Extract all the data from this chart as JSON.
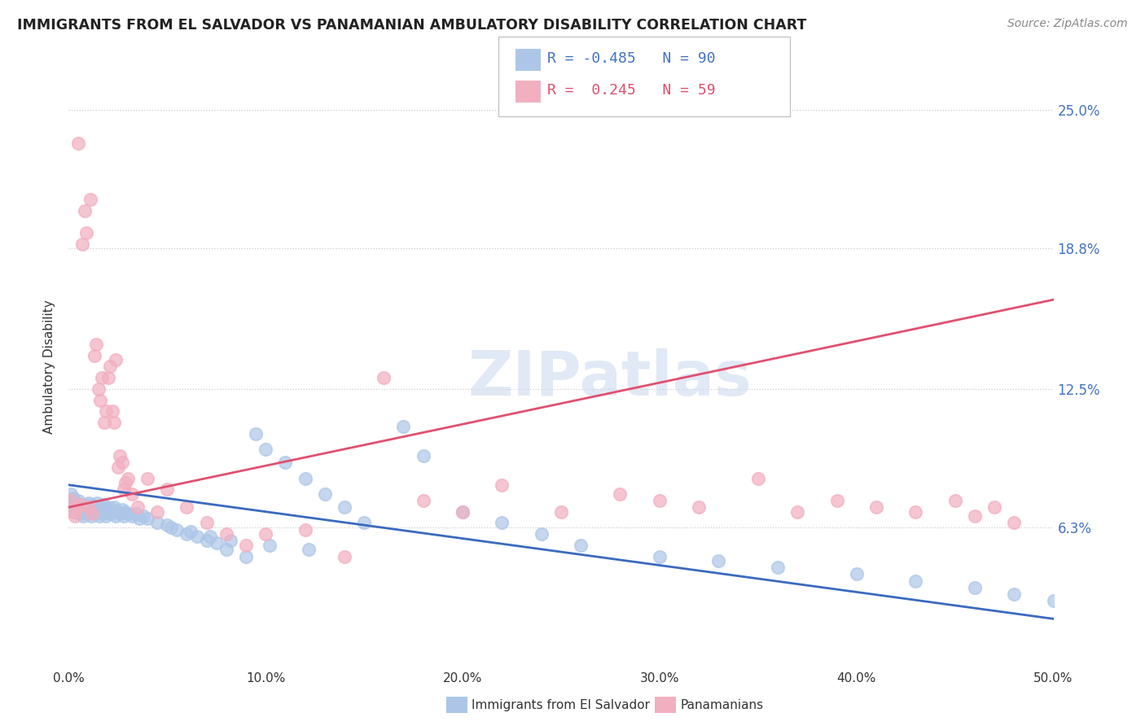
{
  "title": "IMMIGRANTS FROM EL SALVADOR VS PANAMANIAN AMBULATORY DISABILITY CORRELATION CHART",
  "source": "Source: ZipAtlas.com",
  "ylabel": "Ambulatory Disability",
  "yticks": [
    "6.3%",
    "12.5%",
    "18.8%",
    "25.0%"
  ],
  "ytick_vals": [
    6.3,
    12.5,
    18.8,
    25.0
  ],
  "legend1_label": "Immigrants from El Salvador",
  "legend2_label": "Panamanians",
  "R1": -0.485,
  "N1": 90,
  "R2": 0.245,
  "N2": 59,
  "color_blue": "#adc6e8",
  "color_pink": "#f2afc0",
  "line_blue": "#3a6abf",
  "line_pink": "#e05070",
  "watermark": "ZIPatlas",
  "xlim": [
    0.0,
    50.0
  ],
  "ylim": [
    0.0,
    27.0
  ],
  "blue_scatter_x": [
    0.1,
    0.15,
    0.2,
    0.25,
    0.3,
    0.35,
    0.4,
    0.45,
    0.5,
    0.55,
    0.6,
    0.65,
    0.7,
    0.75,
    0.8,
    0.85,
    0.9,
    0.95,
    1.0,
    1.05,
    1.1,
    1.15,
    1.2,
    1.25,
    1.3,
    1.35,
    1.4,
    1.45,
    1.5,
    1.55,
    1.6,
    1.65,
    1.7,
    1.75,
    1.8,
    1.85,
    1.9,
    1.95,
    2.0,
    2.1,
    2.2,
    2.3,
    2.4,
    2.5,
    2.6,
    2.7,
    2.8,
    2.9,
    3.0,
    3.2,
    3.4,
    3.6,
    3.8,
    4.0,
    4.5,
    5.0,
    5.5,
    6.0,
    6.5,
    7.0,
    7.5,
    8.0,
    9.0,
    9.5,
    10.0,
    11.0,
    12.0,
    13.0,
    14.0,
    15.0,
    17.0,
    18.0,
    20.0,
    22.0,
    24.0,
    26.0,
    30.0,
    33.0,
    36.0,
    40.0,
    43.0,
    46.0,
    48.0,
    50.0,
    5.2,
    6.2,
    7.2,
    8.2,
    10.2,
    12.2
  ],
  "blue_scatter_y": [
    7.8,
    7.5,
    7.2,
    7.6,
    7.0,
    7.4,
    7.3,
    7.1,
    7.5,
    6.9,
    7.0,
    7.3,
    7.2,
    6.8,
    7.1,
    7.3,
    7.0,
    6.9,
    7.4,
    7.2,
    7.1,
    6.8,
    7.3,
    7.0,
    7.2,
    6.9,
    7.1,
    7.4,
    7.0,
    6.8,
    7.2,
    7.1,
    6.9,
    7.3,
    7.1,
    7.0,
    6.8,
    7.2,
    7.0,
    6.9,
    7.1,
    7.2,
    6.8,
    7.0,
    6.9,
    7.1,
    6.8,
    7.0,
    6.9,
    6.8,
    6.9,
    6.7,
    6.8,
    6.7,
    6.5,
    6.4,
    6.2,
    6.0,
    5.9,
    5.7,
    5.6,
    5.3,
    5.0,
    10.5,
    9.8,
    9.2,
    8.5,
    7.8,
    7.2,
    6.5,
    10.8,
    9.5,
    7.0,
    6.5,
    6.0,
    5.5,
    5.0,
    4.8,
    4.5,
    4.2,
    3.9,
    3.6,
    3.3,
    3.0,
    6.3,
    6.1,
    5.9,
    5.7,
    5.5,
    5.3
  ],
  "pink_scatter_x": [
    0.1,
    0.2,
    0.3,
    0.4,
    0.5,
    0.6,
    0.7,
    0.8,
    0.9,
    1.0,
    1.1,
    1.2,
    1.3,
    1.4,
    1.5,
    1.6,
    1.7,
    1.8,
    1.9,
    2.0,
    2.1,
    2.2,
    2.3,
    2.4,
    2.5,
    2.6,
    2.7,
    2.8,
    2.9,
    3.0,
    3.2,
    3.5,
    4.0,
    4.5,
    5.0,
    6.0,
    7.0,
    8.0,
    9.0,
    10.0,
    12.0,
    14.0,
    16.0,
    18.0,
    20.0,
    22.0,
    25.0,
    28.0,
    30.0,
    32.0,
    35.0,
    37.0,
    39.0,
    41.0,
    43.0,
    45.0,
    46.0,
    47.0,
    48.0
  ],
  "pink_scatter_y": [
    7.5,
    7.0,
    6.8,
    7.2,
    23.5,
    7.3,
    19.0,
    20.5,
    19.5,
    7.2,
    21.0,
    6.9,
    14.0,
    14.5,
    12.5,
    12.0,
    13.0,
    11.0,
    11.5,
    13.0,
    13.5,
    11.5,
    11.0,
    13.8,
    9.0,
    9.5,
    9.2,
    8.0,
    8.3,
    8.5,
    7.8,
    7.2,
    8.5,
    7.0,
    8.0,
    7.2,
    6.5,
    6.0,
    5.5,
    6.0,
    6.2,
    5.0,
    13.0,
    7.5,
    7.0,
    8.2,
    7.0,
    7.8,
    7.5,
    7.2,
    8.5,
    7.0,
    7.5,
    7.2,
    7.0,
    7.5,
    6.8,
    7.2,
    6.5
  ],
  "blue_line_x": [
    0.0,
    50.0
  ],
  "blue_line_y": [
    8.2,
    2.2
  ],
  "pink_line_x": [
    0.0,
    50.0
  ],
  "pink_line_y": [
    7.2,
    16.5
  ]
}
